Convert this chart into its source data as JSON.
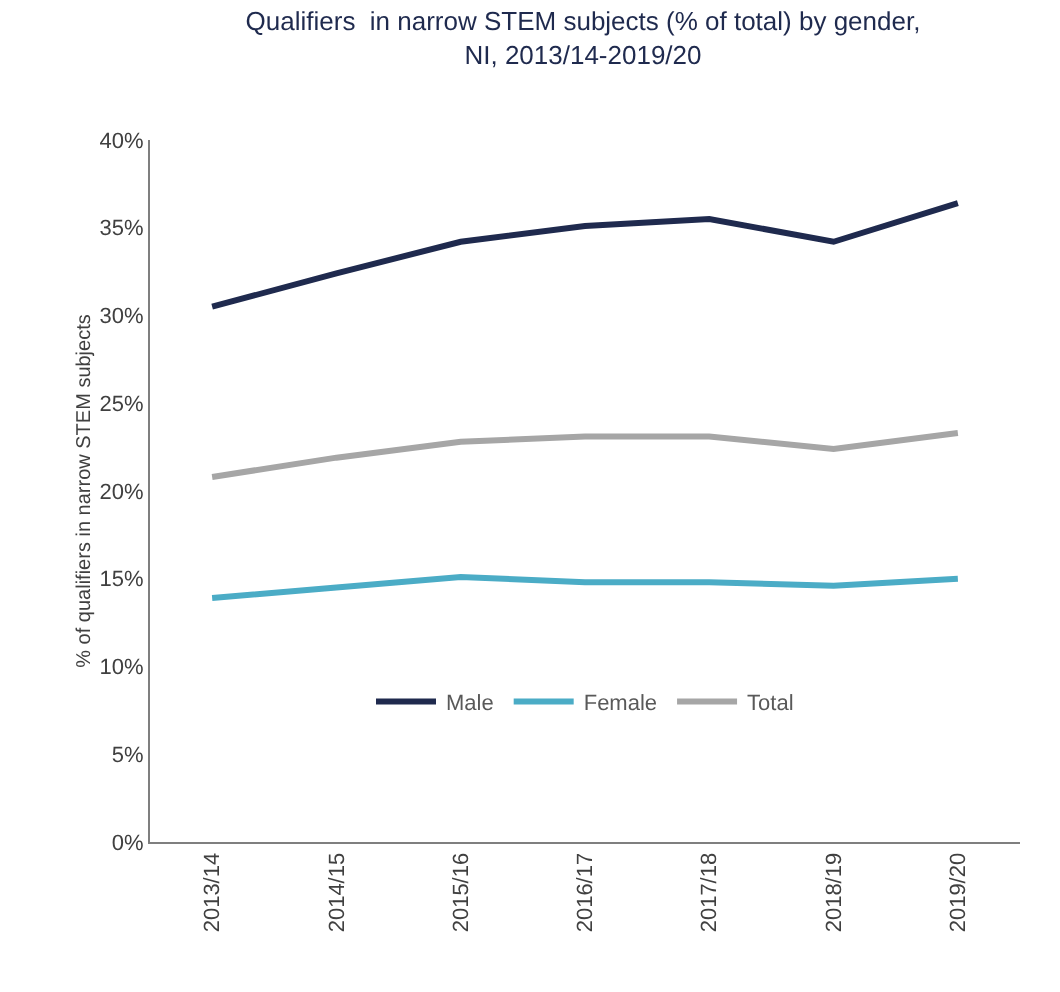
{
  "chart_data": {
    "type": "line",
    "title": "Qualifiers  in narrow STEM subjects (% of total) by gender,\nNI, 2013/14-2019/20",
    "ylabel": "% of qualifiers in narrow STEM subjects",
    "categories": [
      "2013/14",
      "2014/15",
      "2015/16",
      "2016/17",
      "2017/18",
      "2018/19",
      "2019/20"
    ],
    "series": [
      {
        "name": "Male",
        "color": "#1f2a4e",
        "values": [
          30.5,
          32.4,
          34.2,
          35.1,
          35.5,
          34.2,
          36.4
        ]
      },
      {
        "name": "Female",
        "color": "#4bacc6",
        "values": [
          13.9,
          14.5,
          15.1,
          14.8,
          14.8,
          14.6,
          15.0
        ]
      },
      {
        "name": "Total",
        "color": "#a6a6a6",
        "values": [
          20.8,
          21.9,
          22.8,
          23.1,
          23.1,
          22.4,
          23.3
        ]
      }
    ],
    "ylim": [
      0,
      40
    ],
    "yticks": [
      {
        "value": 0,
        "label": "0%"
      },
      {
        "value": 5,
        "label": "5%"
      },
      {
        "value": 10,
        "label": "10%"
      },
      {
        "value": 15,
        "label": "15%"
      },
      {
        "value": 20,
        "label": "20%"
      },
      {
        "value": 25,
        "label": "25%"
      },
      {
        "value": 30,
        "label": "30%"
      },
      {
        "value": 35,
        "label": "35%"
      },
      {
        "value": 40,
        "label": "40%"
      }
    ],
    "grid": false,
    "legend": "bottom",
    "marker": "none",
    "line_style": "solid"
  }
}
